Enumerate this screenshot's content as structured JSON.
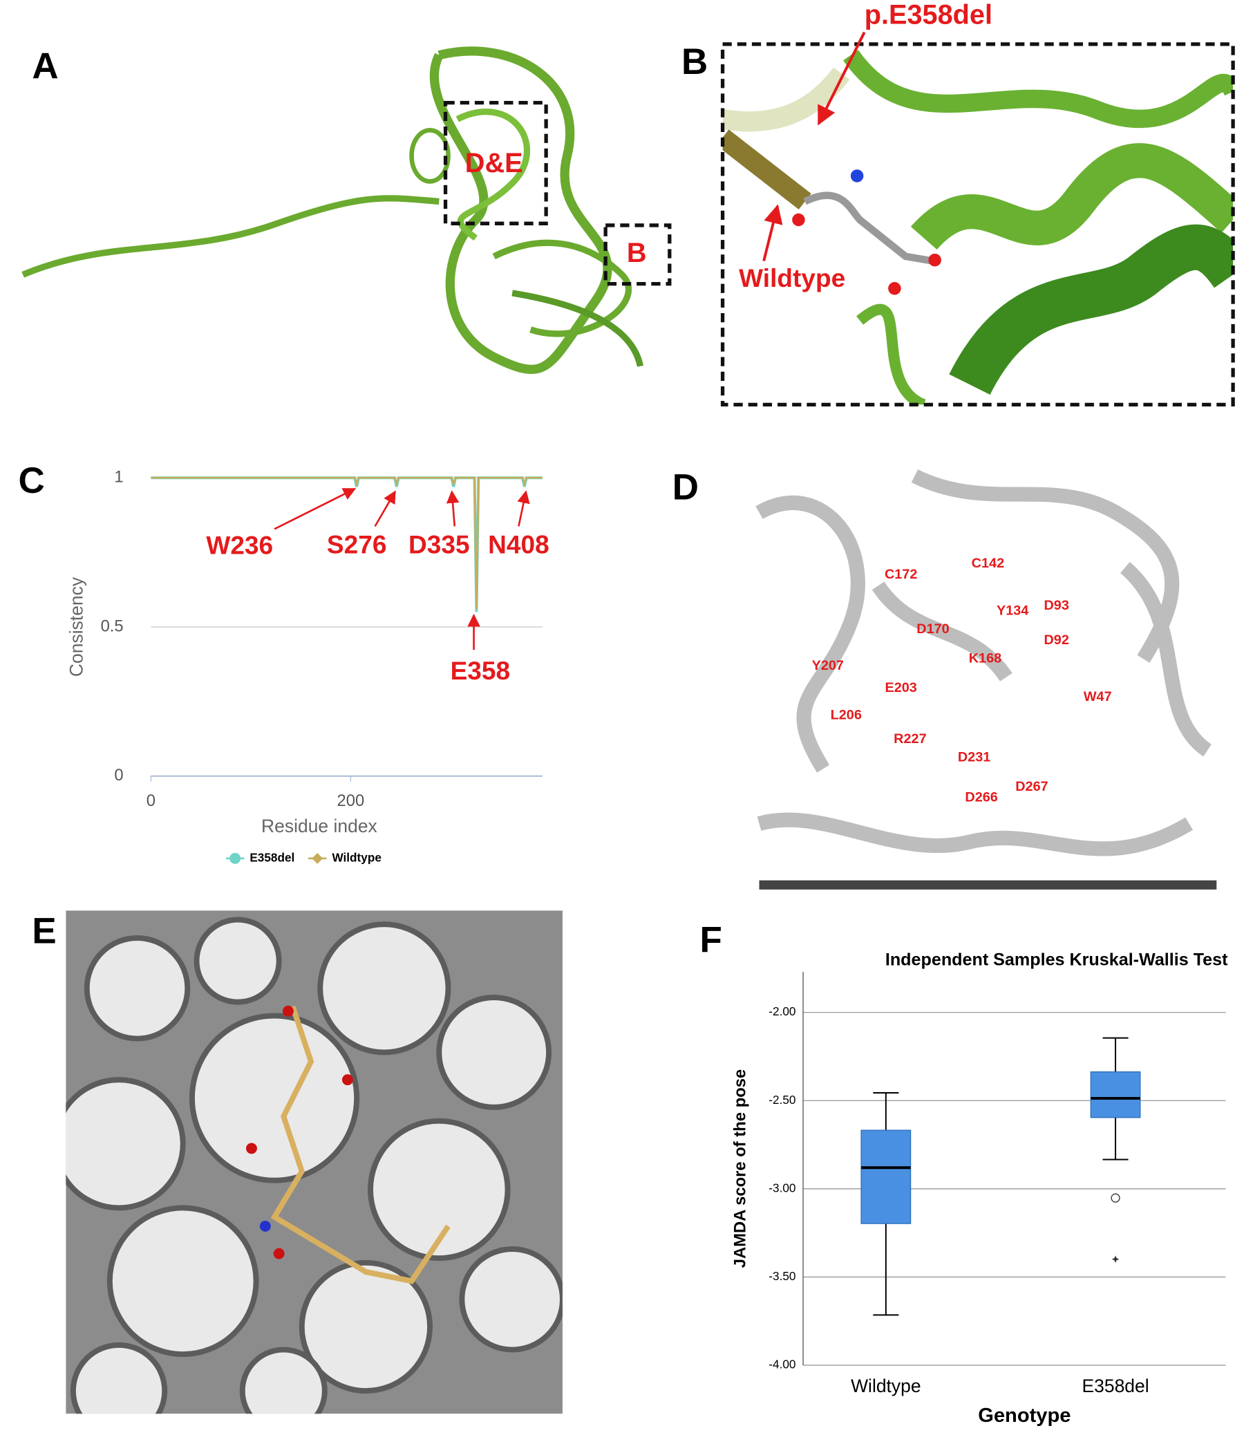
{
  "panels": {
    "A": {
      "letter": "A",
      "labels": [
        "D&E",
        "B"
      ]
    },
    "B": {
      "letter": "B",
      "labels": [
        "p.E358del",
        "Wildtype"
      ]
    },
    "D": {
      "letter": "D",
      "residues": [
        "C142",
        "C172",
        "Y134",
        "D93",
        "D170",
        "D92",
        "K168",
        "Y207",
        "E203",
        "W47",
        "L206",
        "R227",
        "D231",
        "D267",
        "D266"
      ]
    },
    "E": {
      "letter": "E"
    }
  },
  "chart_data": [
    {
      "type": "line",
      "panel": "C",
      "xlabel": "Residue index",
      "ylabel": "Consistency",
      "x": [
        0,
        204,
        206,
        208,
        244,
        246,
        248,
        301,
        303,
        305,
        324,
        326,
        328,
        372,
        374,
        376,
        392
      ],
      "series": [
        {
          "name": "E358del",
          "color": "#6fd3c7",
          "values": [
            1,
            1,
            0.97,
            1,
            1,
            0.97,
            1,
            1,
            0.97,
            1,
            1,
            0.55,
            1,
            1,
            0.97,
            1,
            1
          ]
        },
        {
          "name": "Wildtype",
          "color": "#c8ad5a",
          "values": [
            1,
            1,
            0.98,
            1,
            1,
            0.98,
            1,
            1,
            0.98,
            1,
            1,
            0.56,
            1,
            1,
            0.98,
            1,
            1
          ]
        }
      ],
      "xlim": [
        0,
        392
      ],
      "ylim": [
        0,
        1
      ],
      "xticks": [
        0,
        200
      ],
      "yticks": [
        0,
        0.5,
        1
      ],
      "grid": true,
      "legend": "bottom",
      "annotations": [
        "W236",
        "S276",
        "D335",
        "N408",
        "E358"
      ]
    },
    {
      "type": "box",
      "panel": "F",
      "title": "Independent Samples Kruskal-Wallis Test",
      "xlabel": "Genotype",
      "ylabel": "JAMDA score of the pose",
      "categories": [
        "Wildtype",
        "E358del"
      ],
      "color": "#4a90e2",
      "boxes": [
        {
          "whisker_low": -3.715,
          "q1": -3.197,
          "median": -2.88,
          "q3": -2.668,
          "whisker_high": -2.456,
          "outliers": [],
          "extremes": []
        },
        {
          "whisker_low": -2.834,
          "q1": -2.596,
          "median": -2.487,
          "q3": -2.337,
          "whisker_high": -2.145,
          "outliers": [
            -3.052
          ],
          "extremes": [
            -3.399
          ]
        }
      ],
      "ylim": [
        -4,
        -1.77
      ],
      "yticks": [
        {
          "value": -4,
          "label": "-4.00"
        },
        {
          "value": -3.5,
          "label": "-3.50"
        },
        {
          "value": -3,
          "label": "-3.00"
        },
        {
          "value": -2.5,
          "label": "-2.50"
        },
        {
          "value": -2,
          "label": "-2.00"
        }
      ],
      "grid": true
    }
  ]
}
